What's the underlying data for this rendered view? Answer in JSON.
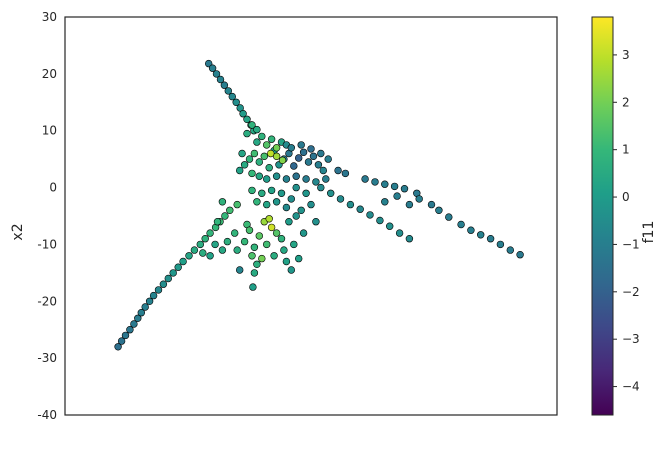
{
  "chart_data": {
    "type": "scatter",
    "title": "",
    "xlabel": "",
    "ylabel": "x2",
    "ylim": [
      -40,
      30
    ],
    "yticks": [
      -40,
      -30,
      -20,
      -10,
      0,
      10,
      20,
      30
    ],
    "xticks_visible": false,
    "grid": false,
    "colorbar": {
      "label": "f11",
      "colormap": "viridis",
      "range": [
        -4.6,
        3.8
      ],
      "ticks": [
        -4,
        -3,
        -2,
        -1,
        0,
        1,
        2,
        3
      ]
    },
    "marker": {
      "shape": "circle",
      "edgecolor": "#000000"
    },
    "colors": {
      "axes_edge": "#262626",
      "viridis": [
        "#440154",
        "#482878",
        "#3e4989",
        "#31688e",
        "#26828e",
        "#1f9e89",
        "#35b779",
        "#6ece58",
        "#b5de2b",
        "#fde725"
      ]
    },
    "x_domain": [
      0,
      100
    ],
    "series": [
      {
        "values_note_free": true,
        "points": [
          [
            29.2,
            21.8,
            -1.2
          ],
          [
            30.0,
            21.0,
            -1.0
          ],
          [
            30.8,
            20.0,
            -0.9
          ],
          [
            31.6,
            19.0,
            -0.9
          ],
          [
            32.4,
            18.0,
            -1.0
          ],
          [
            33.2,
            17.0,
            -0.8
          ],
          [
            34.0,
            16.0,
            -0.7
          ],
          [
            34.8,
            15.0,
            -0.5
          ],
          [
            35.6,
            14.0,
            -0.3
          ],
          [
            36.2,
            13.0,
            0.0
          ],
          [
            37.0,
            12.0,
            0.3
          ],
          [
            37.8,
            11.0,
            0.5
          ],
          [
            38.4,
            10.0,
            0.4
          ],
          [
            10.8,
            -28.0,
            -1.5
          ],
          [
            11.5,
            -27.0,
            -1.4
          ],
          [
            12.3,
            -26.0,
            -1.3
          ],
          [
            13.2,
            -25.0,
            -1.3
          ],
          [
            14.0,
            -24.0,
            -1.2
          ],
          [
            14.8,
            -23.0,
            -1.1
          ],
          [
            15.5,
            -22.0,
            -1.0
          ],
          [
            16.3,
            -21.0,
            -1.0
          ],
          [
            17.2,
            -20.0,
            -0.9
          ],
          [
            18.0,
            -19.0,
            -0.8
          ],
          [
            19.0,
            -18.0,
            -0.7
          ],
          [
            20.0,
            -17.0,
            -0.5
          ],
          [
            21.0,
            -16.0,
            -0.4
          ],
          [
            22.0,
            -15.0,
            -0.2
          ],
          [
            23.0,
            -14.0,
            -0.1
          ],
          [
            24.0,
            -13.0,
            0.1
          ],
          [
            25.2,
            -12.0,
            0.3
          ],
          [
            26.3,
            -11.0,
            0.5
          ],
          [
            27.5,
            -10.0,
            0.6
          ],
          [
            28.5,
            -9.0,
            0.8
          ],
          [
            29.5,
            -8.0,
            0.9
          ],
          [
            30.6,
            -7.0,
            1.0
          ],
          [
            31.5,
            -6.0,
            1.1
          ],
          [
            32.5,
            -5.0,
            1.0
          ],
          [
            33.5,
            -4.0,
            1.2
          ],
          [
            35.0,
            -3.0,
            1.3
          ],
          [
            55.5,
            3.0,
            -1.4
          ],
          [
            57.0,
            2.5,
            -1.3
          ],
          [
            61.0,
            1.5,
            -1.2
          ],
          [
            63.0,
            1.0,
            -1.1
          ],
          [
            65.0,
            0.6,
            -1.0
          ],
          [
            67.0,
            0.2,
            -1.0
          ],
          [
            69.0,
            -0.2,
            -1.1
          ],
          [
            71.5,
            -1.0,
            -1.2
          ],
          [
            74.5,
            -3.0,
            -1.2
          ],
          [
            76.0,
            -4.0,
            -1.0
          ],
          [
            78.0,
            -5.2,
            -1.1
          ],
          [
            80.5,
            -6.5,
            -1.0
          ],
          [
            82.5,
            -7.5,
            -1.0
          ],
          [
            84.5,
            -8.3,
            -0.9
          ],
          [
            86.5,
            -9.0,
            -1.1
          ],
          [
            88.5,
            -10.0,
            -1.0
          ],
          [
            90.5,
            -11.0,
            -1.1
          ],
          [
            92.5,
            -11.8,
            -1.2
          ],
          [
            52.0,
            0.0,
            -0.6
          ],
          [
            54.0,
            -1.0,
            -0.4
          ],
          [
            56.0,
            -2.0,
            -0.6
          ],
          [
            58.0,
            -3.0,
            -0.5
          ],
          [
            60.0,
            -3.8,
            -0.7
          ],
          [
            62.0,
            -4.8,
            -0.6
          ],
          [
            64.0,
            -5.8,
            -0.5
          ],
          [
            66.0,
            -6.8,
            -0.4
          ],
          [
            68.0,
            -8.0,
            -0.5
          ],
          [
            70.0,
            -9.0,
            -0.6
          ],
          [
            65.0,
            -2.5,
            -0.9
          ],
          [
            67.5,
            -1.5,
            -1.0
          ],
          [
            70.0,
            -3.0,
            -1.1
          ],
          [
            72.0,
            -2.0,
            -1.0
          ],
          [
            36.5,
            4.0,
            0.5
          ],
          [
            37.5,
            5.0,
            0.9
          ],
          [
            38.5,
            6.0,
            1.2
          ],
          [
            39.5,
            4.5,
            0.7
          ],
          [
            40.5,
            5.5,
            1.3
          ],
          [
            41.5,
            3.5,
            0.6
          ],
          [
            42.5,
            6.5,
            0.2
          ],
          [
            43.5,
            4.0,
            -0.3
          ],
          [
            44.5,
            5.0,
            -0.8
          ],
          [
            45.5,
            6.0,
            -1.3
          ],
          [
            46.5,
            3.8,
            -1.8
          ],
          [
            47.5,
            5.2,
            -2.0
          ],
          [
            48.5,
            6.2,
            -1.5
          ],
          [
            49.5,
            4.5,
            -1.2
          ],
          [
            50.5,
            5.5,
            -1.4
          ],
          [
            51.5,
            4.0,
            -1.0
          ],
          [
            52.5,
            3.0,
            -0.8
          ],
          [
            39.0,
            8.0,
            0.4
          ],
          [
            40.0,
            9.0,
            0.8
          ],
          [
            41.0,
            7.5,
            1.5
          ],
          [
            42.0,
            8.5,
            0.9
          ],
          [
            43.0,
            7.0,
            2.0
          ],
          [
            44.0,
            8.0,
            0.3
          ],
          [
            45.0,
            7.5,
            -0.6
          ],
          [
            46.0,
            7.0,
            -1.0
          ],
          [
            38.0,
            2.5,
            1.0
          ],
          [
            39.5,
            2.0,
            0.4
          ],
          [
            41.0,
            1.5,
            0.0
          ],
          [
            43.0,
            2.0,
            -0.4
          ],
          [
            45.0,
            1.5,
            -0.9
          ],
          [
            47.0,
            2.0,
            -1.4
          ],
          [
            49.0,
            1.5,
            -1.1
          ],
          [
            51.0,
            1.0,
            -0.7
          ],
          [
            53.0,
            1.5,
            -1.0
          ],
          [
            43.0,
            5.5,
            2.6
          ],
          [
            41.8,
            6.0,
            3.0
          ],
          [
            44.2,
            4.8,
            2.2
          ],
          [
            37.0,
            9.5,
            0.6
          ],
          [
            38.0,
            11.0,
            0.8
          ],
          [
            39.0,
            10.2,
            0.5
          ],
          [
            48.0,
            7.5,
            -1.2
          ],
          [
            50.0,
            6.8,
            -1.6
          ],
          [
            52.0,
            6.0,
            -1.2
          ],
          [
            53.5,
            5.0,
            -1.0
          ],
          [
            36.0,
            6.0,
            0.3
          ],
          [
            35.5,
            3.0,
            0.2
          ],
          [
            47.0,
            0.0,
            -0.4
          ],
          [
            49.0,
            -1.0,
            -0.2
          ],
          [
            46.0,
            -2.0,
            -0.5
          ],
          [
            44.0,
            -1.0,
            -0.1
          ],
          [
            42.0,
            -0.5,
            0.2
          ],
          [
            40.0,
            -1.0,
            0.5
          ],
          [
            38.0,
            -0.5,
            0.8
          ],
          [
            39.0,
            -2.5,
            0.9
          ],
          [
            41.0,
            -3.0,
            0.3
          ],
          [
            43.0,
            -2.5,
            -0.2
          ],
          [
            45.0,
            -3.5,
            -0.6
          ],
          [
            48.0,
            -4.0,
            -0.3
          ],
          [
            50.0,
            -3.0,
            -0.5
          ],
          [
            51.0,
            -6.0,
            -0.4
          ],
          [
            40.5,
            -6.0,
            2.5
          ],
          [
            42.0,
            -7.0,
            3.2
          ],
          [
            41.5,
            -5.5,
            2.8
          ],
          [
            43.0,
            -8.0,
            1.5
          ],
          [
            44.0,
            -9.0,
            0.8
          ],
          [
            44.5,
            -11.0,
            0.4
          ],
          [
            45.0,
            -13.0,
            0.2
          ],
          [
            46.0,
            -14.5,
            -0.2
          ],
          [
            39.5,
            -8.5,
            1.6
          ],
          [
            38.5,
            -10.5,
            0.9
          ],
          [
            38.0,
            -12.0,
            1.4
          ],
          [
            40.0,
            -12.5,
            2.0
          ],
          [
            39.0,
            -13.5,
            0.7
          ],
          [
            38.5,
            -15.0,
            0.5
          ],
          [
            38.2,
            -17.5,
            0.1
          ],
          [
            36.5,
            -9.5,
            1.0
          ],
          [
            35.0,
            -11.0,
            0.6
          ],
          [
            34.5,
            -8.0,
            0.9
          ],
          [
            33.0,
            -9.5,
            0.7
          ],
          [
            32.0,
            -11.0,
            0.4
          ],
          [
            30.5,
            -10.0,
            0.3
          ],
          [
            29.5,
            -12.0,
            0.2
          ],
          [
            28.0,
            -11.5,
            0.6
          ],
          [
            35.5,
            -14.5,
            -0.8
          ],
          [
            37.0,
            -6.5,
            1.1
          ],
          [
            46.5,
            -10.0,
            0.3
          ],
          [
            47.5,
            -12.5,
            0.1
          ],
          [
            42.5,
            -12.0,
            0.6
          ],
          [
            41.0,
            -10.0,
            1.2
          ],
          [
            37.5,
            -7.5,
            1.3
          ],
          [
            32.0,
            -2.5,
            0.8
          ],
          [
            31.0,
            -6.0,
            0.9
          ],
          [
            45.5,
            -6.0,
            0.0
          ],
          [
            48.5,
            -8.0,
            -0.2
          ],
          [
            47.0,
            -5.0,
            -0.3
          ]
        ]
      }
    ]
  }
}
